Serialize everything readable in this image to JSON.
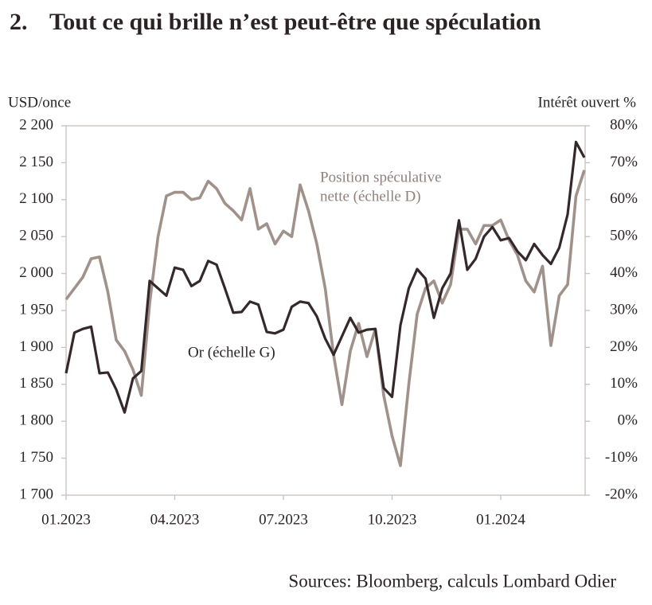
{
  "chart_data": {
    "type": "line",
    "title_number": "2.",
    "title": "Tout ce qui brille n’est peut-être que spéculation",
    "y_label": "USD/once",
    "y2_label": "Intérêt ouvert %",
    "source": "Sources: Bloomberg, calculs Lombard Odier",
    "annotations": [
      "Position spéculative",
      "nette (échelle D)",
      "Or (échelle G)"
    ],
    "categories": [
      "01.2023",
      null,
      null,
      null,
      null,
      null,
      null,
      null,
      null,
      null,
      null,
      null,
      null,
      "04.2023",
      null,
      null,
      null,
      null,
      null,
      null,
      null,
      null,
      null,
      null,
      null,
      null,
      "07.2023",
      null,
      null,
      null,
      null,
      null,
      null,
      null,
      null,
      null,
      null,
      null,
      null,
      "10.2023",
      null,
      null,
      null,
      null,
      null,
      null,
      null,
      null,
      null,
      null,
      null,
      null,
      "01.2024",
      null,
      null,
      null,
      null,
      null,
      null,
      null,
      null,
      null,
      null
    ],
    "series": [
      {
        "name": "Or (échelle G)",
        "color": "#35282a",
        "axis": "y",
        "values": [
          1865,
          1920,
          1925,
          1928,
          1865,
          1866,
          1843,
          1812,
          1858,
          1868,
          1990,
          1980,
          1970,
          2008,
          2005,
          1983,
          1990,
          2017,
          2012,
          1980,
          1947,
          1948,
          1962,
          1958,
          1921,
          1919,
          1924,
          1955,
          1962,
          1960,
          1942,
          1912,
          1890,
          1915,
          1940,
          1920,
          1924,
          1925,
          1845,
          1833,
          1930,
          1980,
          2006,
          1993,
          1940,
          1980,
          2000,
          2072,
          2005,
          2020,
          2050,
          2063,
          2045,
          2048,
          2030,
          2018,
          2040,
          2025,
          2013,
          2035,
          2080,
          2178,
          2157
        ]
      },
      {
        "name": "Position spéculative nette (échelle D)",
        "color": "#a0928a",
        "axis": "y2",
        "values": [
          33,
          36,
          39,
          44,
          44.5,
          35,
          22,
          19,
          14,
          7,
          32,
          50,
          61,
          62,
          62,
          60,
          60.5,
          65,
          63,
          59,
          57,
          54.5,
          63,
          52,
          53.5,
          48,
          51.5,
          50,
          64,
          57,
          48,
          36,
          18,
          4.5,
          19,
          26.5,
          17.5,
          25,
          7,
          -4,
          -12,
          10,
          29,
          36,
          38,
          32,
          37,
          52,
          52,
          48,
          53,
          53,
          54.5,
          49,
          45,
          38,
          35,
          42,
          20.5,
          34,
          37,
          61,
          68
        ]
      }
    ],
    "ylim": [
      1700,
      2200
    ],
    "yticks": [
      {
        "value": 1700,
        "label": "1 700"
      },
      {
        "value": 1750,
        "label": "1 750"
      },
      {
        "value": 1800,
        "label": "1 800"
      },
      {
        "value": 1850,
        "label": "1 850"
      },
      {
        "value": 1900,
        "label": "1 900"
      },
      {
        "value": 1950,
        "label": "1 950"
      },
      {
        "value": 2000,
        "label": "2 000"
      },
      {
        "value": 2050,
        "label": "2 050"
      },
      {
        "value": 2100,
        "label": "2 100"
      },
      {
        "value": 2150,
        "label": "2 150"
      },
      {
        "value": 2200,
        "label": "2 200"
      }
    ],
    "y2lim": [
      -20,
      80
    ],
    "y2ticks": [
      {
        "value": -20,
        "label": "-20%"
      },
      {
        "value": -10,
        "label": "-10%"
      },
      {
        "value": 0,
        "label": "0%"
      },
      {
        "value": 10,
        "label": "10%"
      },
      {
        "value": 20,
        "label": "20%"
      },
      {
        "value": 30,
        "label": "30%"
      },
      {
        "value": 40,
        "label": "40%"
      },
      {
        "value": 50,
        "label": "50%"
      },
      {
        "value": 60,
        "label": "60%"
      },
      {
        "value": 70,
        "label": "70%"
      },
      {
        "value": 80,
        "label": "80%"
      }
    ]
  }
}
